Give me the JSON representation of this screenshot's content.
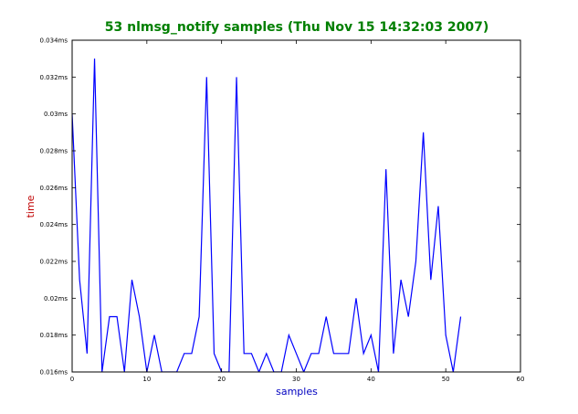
{
  "chart_data": {
    "type": "line",
    "title": "53 nlmsg_notify samples (Thu Nov 15 14:32:03 2007)",
    "xlabel": "samples",
    "ylabel": "time",
    "xlim": [
      0,
      60
    ],
    "ylim": [
      0.016,
      0.034
    ],
    "x_ticks": [
      0,
      10,
      20,
      30,
      40,
      50,
      60
    ],
    "x_tick_labels": [
      "0",
      "10",
      "20",
      "30",
      "40",
      "50",
      "60"
    ],
    "y_ticks": [
      0.016,
      0.018,
      0.02,
      0.022,
      0.024,
      0.026,
      0.028,
      0.03,
      0.032,
      0.034
    ],
    "y_tick_labels": [
      "0.016ms",
      "0.018ms",
      "0.02ms",
      "0.022ms",
      "0.024ms",
      "0.026ms",
      "0.028ms",
      "0.03ms",
      "0.032ms",
      "0.034ms"
    ],
    "grid": false,
    "series": [
      {
        "x": [
          0,
          1,
          2,
          3,
          4,
          5,
          6,
          7,
          8,
          9,
          10,
          11,
          12,
          13,
          14,
          15,
          16,
          17,
          18,
          19,
          20,
          21,
          22,
          23,
          24,
          25,
          26,
          27,
          28,
          29,
          30,
          31,
          32,
          33,
          34,
          35,
          36,
          37,
          38,
          39,
          40,
          41,
          42,
          43,
          44,
          45,
          46,
          47,
          48,
          49,
          50,
          51,
          52
        ],
        "values": [
          0.03,
          0.021,
          0.017,
          0.033,
          0.016,
          0.019,
          0.019,
          0.016,
          0.021,
          0.019,
          0.016,
          0.018,
          0.016,
          0.016,
          0.016,
          0.017,
          0.017,
          0.019,
          0.032,
          0.017,
          0.016,
          0.016,
          0.032,
          0.017,
          0.017,
          0.016,
          0.017,
          0.016,
          0.016,
          0.018,
          0.017,
          0.016,
          0.017,
          0.017,
          0.019,
          0.017,
          0.017,
          0.017,
          0.02,
          0.017,
          0.018,
          0.016,
          0.027,
          0.017,
          0.021,
          0.019,
          0.022,
          0.029,
          0.021,
          0.025,
          0.018,
          0.016,
          0.019
        ]
      }
    ]
  },
  "colors": {
    "title": "#007f00",
    "line": "#0000ff",
    "xlabel": "#0000c0",
    "ylabel": "#c00000",
    "axes": "#000000"
  }
}
